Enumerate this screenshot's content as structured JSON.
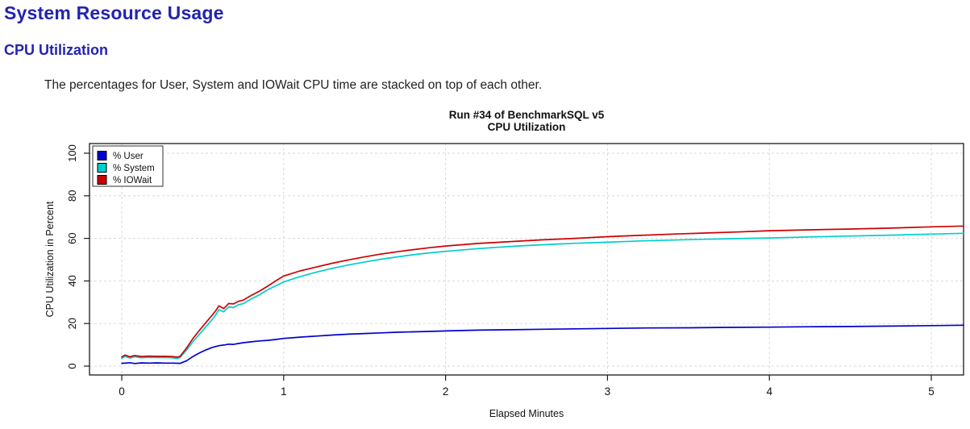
{
  "page": {
    "title": "System Resource Usage",
    "section_heading": "CPU Utilization",
    "description": "The percentages for User, System and IOWait CPU time are stacked on top of each other.",
    "heading_color": "#2323b1"
  },
  "chart_data": {
    "type": "line",
    "title_line1": "Run #34 of BenchmarkSQL v5",
    "title_line2": "CPU Utilization",
    "xlabel": "Elapsed Minutes",
    "ylabel": "CPU Utilization in Percent",
    "xlim": [
      0,
      5.2
    ],
    "ylim": [
      0,
      100
    ],
    "xticks": [
      0,
      1,
      2,
      3,
      4,
      5
    ],
    "yticks": [
      0,
      20,
      40,
      60,
      80,
      100
    ],
    "grid": true,
    "grid_style": "dashed",
    "grid_color": "#d9d9d9",
    "axis_color": "#1a1a1a",
    "legend_position": "top-left",
    "series": [
      {
        "name": "% User",
        "color": "#0000CD",
        "points": [
          [
            0,
            1.3
          ],
          [
            0.05,
            1.6
          ],
          [
            0.08,
            1.2
          ],
          [
            0.12,
            1.5
          ],
          [
            0.17,
            1.4
          ],
          [
            0.22,
            1.5
          ],
          [
            0.27,
            1.4
          ],
          [
            0.32,
            1.4
          ],
          [
            0.36,
            1.3
          ],
          [
            0.4,
            2.5
          ],
          [
            0.44,
            4.5
          ],
          [
            0.48,
            6.2
          ],
          [
            0.52,
            7.6
          ],
          [
            0.56,
            8.8
          ],
          [
            0.6,
            9.6
          ],
          [
            0.63,
            9.9
          ],
          [
            0.66,
            10.3
          ],
          [
            0.69,
            10.2
          ],
          [
            0.72,
            10.6
          ],
          [
            0.75,
            11
          ],
          [
            0.8,
            11.4
          ],
          [
            0.85,
            11.8
          ],
          [
            0.9,
            12.1
          ],
          [
            0.95,
            12.5
          ],
          [
            1,
            13
          ],
          [
            1.1,
            13.6
          ],
          [
            1.2,
            14.1
          ],
          [
            1.3,
            14.6
          ],
          [
            1.4,
            15
          ],
          [
            1.5,
            15.3
          ],
          [
            1.6,
            15.6
          ],
          [
            1.7,
            15.9
          ],
          [
            1.8,
            16.1
          ],
          [
            1.9,
            16.3
          ],
          [
            2,
            16.5
          ],
          [
            2.2,
            16.9
          ],
          [
            2.4,
            17.1
          ],
          [
            2.6,
            17.3
          ],
          [
            2.8,
            17.5
          ],
          [
            3,
            17.7
          ],
          [
            3.25,
            17.9
          ],
          [
            3.5,
            18
          ],
          [
            3.75,
            18.2
          ],
          [
            4,
            18.3
          ],
          [
            4.25,
            18.5
          ],
          [
            4.5,
            18.6
          ],
          [
            4.75,
            18.8
          ],
          [
            5,
            19
          ],
          [
            5.2,
            19.2
          ]
        ]
      },
      {
        "name": "% System",
        "color": "#00CDCD",
        "points": [
          [
            0,
            3.6
          ],
          [
            0.02,
            4.6
          ],
          [
            0.05,
            3.8
          ],
          [
            0.08,
            4.4
          ],
          [
            0.12,
            3.9
          ],
          [
            0.17,
            4.1
          ],
          [
            0.22,
            4
          ],
          [
            0.27,
            4
          ],
          [
            0.31,
            3.9
          ],
          [
            0.34,
            3.6
          ],
          [
            0.36,
            4
          ],
          [
            0.4,
            7.5
          ],
          [
            0.44,
            11.5
          ],
          [
            0.48,
            15
          ],
          [
            0.52,
            18.5
          ],
          [
            0.56,
            22
          ],
          [
            0.58,
            24
          ],
          [
            0.6,
            26.5
          ],
          [
            0.63,
            25.5
          ],
          [
            0.66,
            27.8
          ],
          [
            0.69,
            27.5
          ],
          [
            0.72,
            28.8
          ],
          [
            0.75,
            29.3
          ],
          [
            0.8,
            31.5
          ],
          [
            0.85,
            33.5
          ],
          [
            0.9,
            35.8
          ],
          [
            0.95,
            37.7
          ],
          [
            1,
            39.5
          ],
          [
            1.1,
            42
          ],
          [
            1.2,
            44.1
          ],
          [
            1.3,
            45.9
          ],
          [
            1.4,
            47.5
          ],
          [
            1.5,
            48.9
          ],
          [
            1.6,
            50.2
          ],
          [
            1.7,
            51.3
          ],
          [
            1.8,
            52.3
          ],
          [
            1.9,
            53.2
          ],
          [
            2,
            53.9
          ],
          [
            2.2,
            55.2
          ],
          [
            2.4,
            56.2
          ],
          [
            2.6,
            57
          ],
          [
            2.8,
            57.7
          ],
          [
            3,
            58.2
          ],
          [
            3.2,
            58.8
          ],
          [
            3.4,
            59.2
          ],
          [
            3.6,
            59.6
          ],
          [
            3.8,
            59.9
          ],
          [
            4,
            60.2
          ],
          [
            4.25,
            60.7
          ],
          [
            4.5,
            61.1
          ],
          [
            4.75,
            61.5
          ],
          [
            5,
            62
          ],
          [
            5.2,
            62.4
          ]
        ]
      },
      {
        "name": "% IOWait",
        "color": "#CD0000",
        "points": [
          [
            0,
            4.3
          ],
          [
            0.02,
            5.2
          ],
          [
            0.05,
            4.4
          ],
          [
            0.08,
            5
          ],
          [
            0.12,
            4.5
          ],
          [
            0.17,
            4.7
          ],
          [
            0.22,
            4.6
          ],
          [
            0.27,
            4.6
          ],
          [
            0.31,
            4.5
          ],
          [
            0.34,
            4.2
          ],
          [
            0.36,
            4.6
          ],
          [
            0.4,
            8.5
          ],
          [
            0.44,
            13
          ],
          [
            0.48,
            16.8
          ],
          [
            0.52,
            20.5
          ],
          [
            0.56,
            24
          ],
          [
            0.58,
            26
          ],
          [
            0.6,
            28.3
          ],
          [
            0.63,
            27
          ],
          [
            0.66,
            29.4
          ],
          [
            0.69,
            29.2
          ],
          [
            0.72,
            30.4
          ],
          [
            0.75,
            31
          ],
          [
            0.8,
            33.2
          ],
          [
            0.85,
            35.2
          ],
          [
            0.9,
            37.5
          ],
          [
            0.95,
            40
          ],
          [
            1,
            42.3
          ],
          [
            1.1,
            44.7
          ],
          [
            1.2,
            46.5
          ],
          [
            1.3,
            48.3
          ],
          [
            1.4,
            49.9
          ],
          [
            1.5,
            51.3
          ],
          [
            1.6,
            52.6
          ],
          [
            1.7,
            53.7
          ],
          [
            1.8,
            54.7
          ],
          [
            1.9,
            55.6
          ],
          [
            2,
            56.4
          ],
          [
            2.2,
            57.6
          ],
          [
            2.4,
            58.5
          ],
          [
            2.6,
            59.3
          ],
          [
            2.8,
            60
          ],
          [
            3,
            60.8
          ],
          [
            3.2,
            61.4
          ],
          [
            3.4,
            62
          ],
          [
            3.6,
            62.5
          ],
          [
            3.8,
            63
          ],
          [
            4,
            63.6
          ],
          [
            4.25,
            64
          ],
          [
            4.5,
            64.4
          ],
          [
            4.75,
            64.8
          ],
          [
            5,
            65.4
          ],
          [
            5.2,
            65.8
          ]
        ]
      }
    ]
  }
}
